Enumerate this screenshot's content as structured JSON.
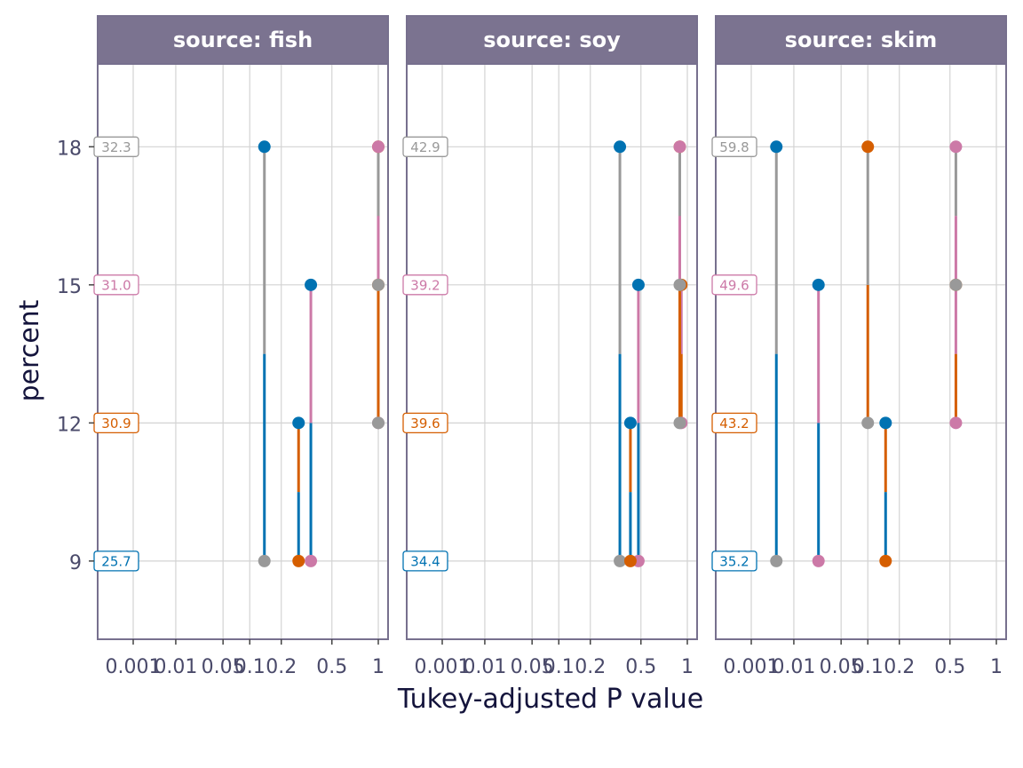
{
  "chart_data": {
    "type": "scatter",
    "xlabel": "Tukey-adjusted P value",
    "ylabel": "percent",
    "x_scale": "root-transformed p-value",
    "x_tick_labels": [
      "0.001",
      "0.01",
      "0.05",
      "0.1",
      "0.2",
      "0.5",
      "1"
    ],
    "x_tick_values": [
      0.001,
      0.01,
      0.05,
      0.1,
      0.2,
      0.5,
      1
    ],
    "y_tick_labels": [
      "9",
      "12",
      "15",
      "18"
    ],
    "y_tick_values": [
      9,
      12,
      15,
      18
    ],
    "ylim": [
      7.3,
      19.8
    ],
    "grid": true,
    "legend": "none",
    "colors": {
      "9": "#0072B2",
      "12": "#D55E00",
      "15": "#CC79A7",
      "18": "#999999"
    },
    "panels": [
      {
        "strip": "source: fish",
        "estimates": [
          {
            "percent": 9,
            "label": "25.7"
          },
          {
            "percent": 12,
            "label": "30.9"
          },
          {
            "percent": 15,
            "label": "31.0"
          },
          {
            "percent": 18,
            "label": "32.3"
          }
        ],
        "comparisons": [
          {
            "from": 9,
            "to": 18,
            "p": 0.14
          },
          {
            "from": 9,
            "to": 15,
            "p": 0.35
          },
          {
            "from": 9,
            "to": 12,
            "p": 0.28
          },
          {
            "from": 12,
            "to": 15,
            "p": 1
          },
          {
            "from": 12,
            "to": 18,
            "p": 1
          },
          {
            "from": 15,
            "to": 18,
            "p": 1
          }
        ]
      },
      {
        "strip": "source: soy",
        "estimates": [
          {
            "percent": 9,
            "label": "34.4"
          },
          {
            "percent": 12,
            "label": "39.6"
          },
          {
            "percent": 15,
            "label": "39.2"
          },
          {
            "percent": 18,
            "label": "42.9"
          }
        ],
        "comparisons": [
          {
            "from": 9,
            "to": 18,
            "p": 0.35
          },
          {
            "from": 9,
            "to": 15,
            "p": 0.48
          },
          {
            "from": 9,
            "to": 12,
            "p": 0.42
          },
          {
            "from": 12,
            "to": 15,
            "p": 0.92
          },
          {
            "from": 12,
            "to": 18,
            "p": 0.9
          },
          {
            "from": 15,
            "to": 18,
            "p": 0.9
          }
        ]
      },
      {
        "strip": "source: skim",
        "estimates": [
          {
            "percent": 9,
            "label": "35.2"
          },
          {
            "percent": 12,
            "label": "43.2"
          },
          {
            "percent": 15,
            "label": "49.6"
          },
          {
            "percent": 18,
            "label": "59.8"
          }
        ],
        "comparisons": [
          {
            "from": 9,
            "to": 18,
            "p": 0.0045
          },
          {
            "from": 9,
            "to": 15,
            "p": 0.025
          },
          {
            "from": 9,
            "to": 12,
            "p": 0.15
          },
          {
            "from": 12,
            "to": 15,
            "p": 0.55
          },
          {
            "from": 12,
            "to": 18,
            "p": 0.1
          },
          {
            "from": 15,
            "to": 18,
            "p": 0.55
          }
        ]
      }
    ]
  }
}
